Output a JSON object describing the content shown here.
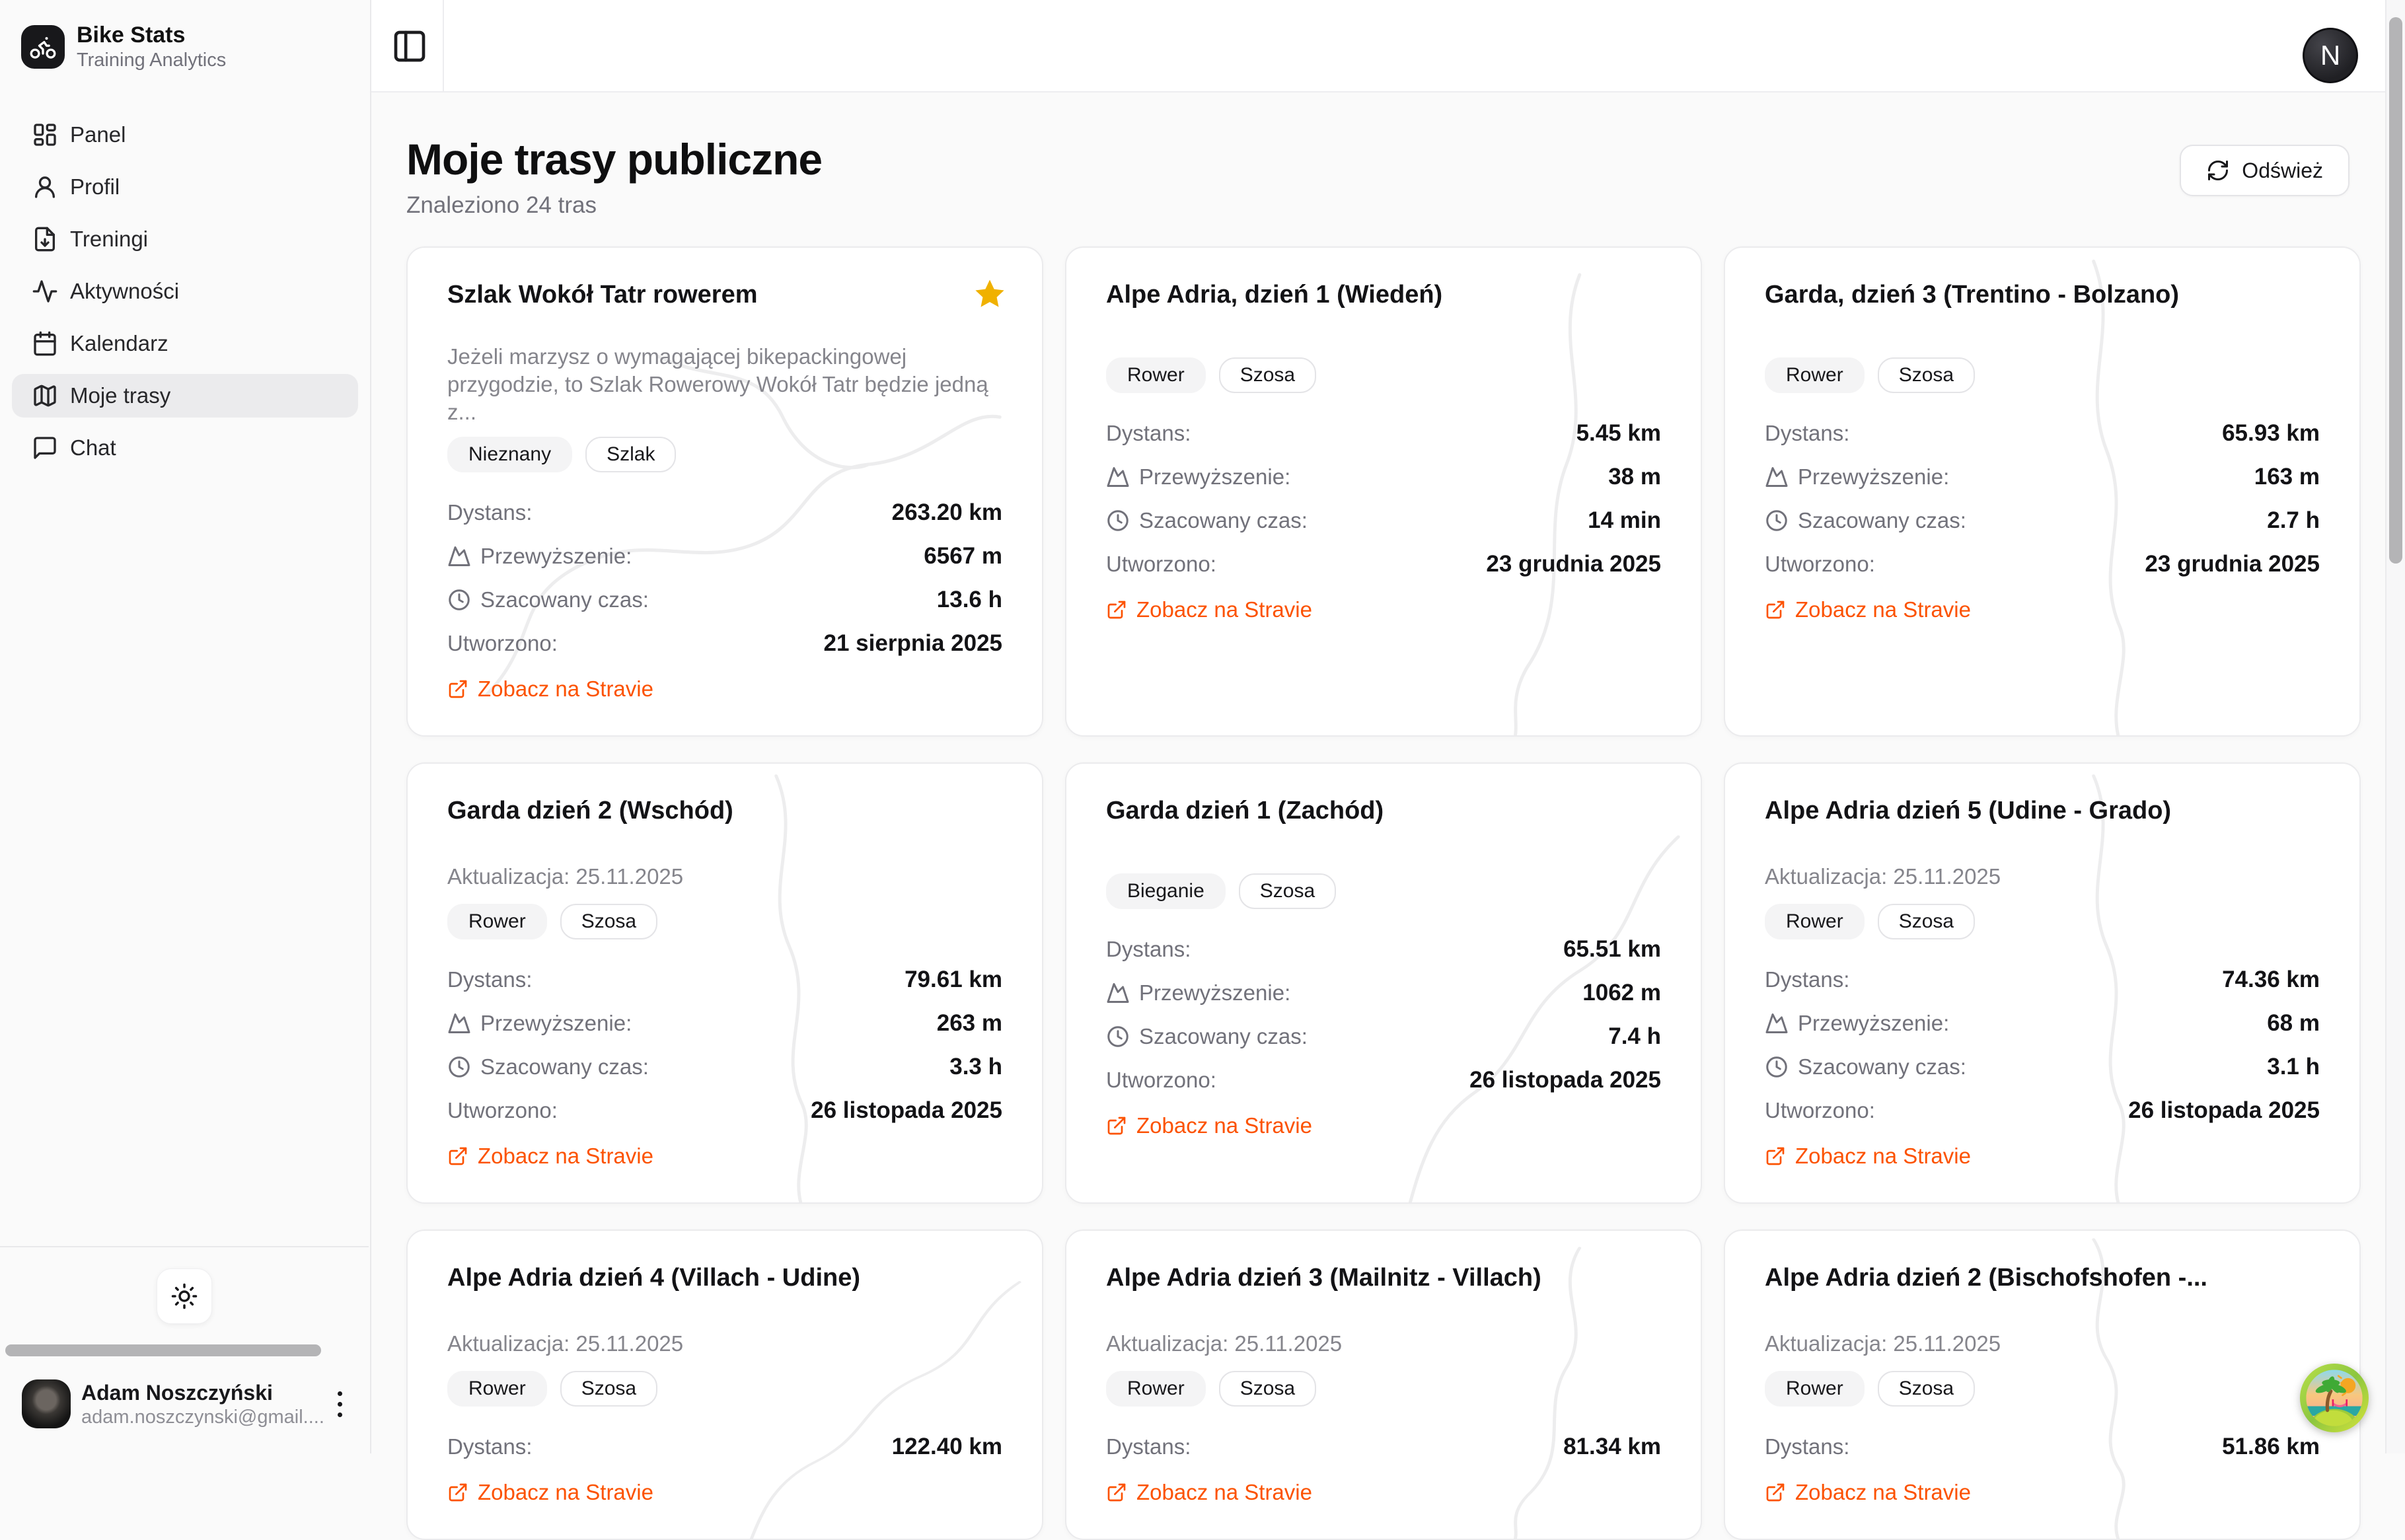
{
  "app": {
    "name": "Bike Stats",
    "subtitle": "Training Analytics"
  },
  "sidebar": {
    "items": [
      {
        "label": "Panel",
        "icon": "dashboard-icon"
      },
      {
        "label": "Profil",
        "icon": "user-icon"
      },
      {
        "label": "Treningi",
        "icon": "file-download-icon"
      },
      {
        "label": "Aktywności",
        "icon": "activity-icon"
      },
      {
        "label": "Kalendarz",
        "icon": "calendar-icon"
      },
      {
        "label": "Moje trasy",
        "icon": "map-icon"
      },
      {
        "label": "Chat",
        "icon": "chat-icon"
      }
    ],
    "active_item": "Moje trasy",
    "user": {
      "name": "Adam Noszczyński",
      "email": "adam.noszczynski@gmail...."
    }
  },
  "header": {
    "avatar_initial": "N"
  },
  "page": {
    "title": "Moje trasy publiczne",
    "subtitle": "Znaleziono 24 tras",
    "refresh_label": "Odśwież"
  },
  "labels": {
    "distance": "Dystans:",
    "elevation": "Przewyższenie:",
    "time": "Szacowany czas:",
    "created": "Utworzono:",
    "strava_link": "Zobacz na Stravie"
  },
  "colors": {
    "accent": "#fc5200",
    "star": "#f0b100"
  },
  "cards": [
    {
      "title": "Szlak Wokół Tatr rowerem",
      "starred": true,
      "description": "Jeżeli marzysz o wymagającej bikepackingowej przygodzie, to Szlak Rowerowy Wokół Tatr będzie jedną z...",
      "updated": null,
      "tags": [
        {
          "label": "Nieznany",
          "style": "filled"
        },
        {
          "label": "Szlak",
          "style": "outline"
        }
      ],
      "distance": "263.20 km",
      "elevation": "6567 m",
      "time": "13.6 h",
      "created": "21 sierpnia 2025"
    },
    {
      "title": "Alpe Adria, dzień 1 (Wiedeń)",
      "starred": false,
      "description": null,
      "updated": null,
      "tags": [
        {
          "label": "Rower",
          "style": "filled"
        },
        {
          "label": "Szosa",
          "style": "outline"
        }
      ],
      "distance": "5.45 km",
      "elevation": "38 m",
      "time": "14 min",
      "created": "23 grudnia 2025"
    },
    {
      "title": "Garda, dzień 3 (Trentino - Bolzano)",
      "starred": false,
      "description": null,
      "updated": null,
      "tags": [
        {
          "label": "Rower",
          "style": "filled"
        },
        {
          "label": "Szosa",
          "style": "outline"
        }
      ],
      "distance": "65.93 km",
      "elevation": "163 m",
      "time": "2.7 h",
      "created": "23 grudnia 2025"
    },
    {
      "title": "Garda dzień 2 (Wschód)",
      "starred": false,
      "description": null,
      "updated": "Aktualizacja: 25.11.2025",
      "tags": [
        {
          "label": "Rower",
          "style": "filled"
        },
        {
          "label": "Szosa",
          "style": "outline"
        }
      ],
      "distance": "79.61 km",
      "elevation": "263 m",
      "time": "3.3 h",
      "created": "26 listopada 2025"
    },
    {
      "title": "Garda dzień 1 (Zachód)",
      "starred": false,
      "description": null,
      "updated": null,
      "tags": [
        {
          "label": "Bieganie",
          "style": "filled"
        },
        {
          "label": "Szosa",
          "style": "outline"
        }
      ],
      "distance": "65.51 km",
      "elevation": "1062 m",
      "time": "7.4 h",
      "created": "26 listopada 2025"
    },
    {
      "title": "Alpe Adria dzień 5 (Udine - Grado)",
      "starred": false,
      "description": null,
      "updated": "Aktualizacja: 25.11.2025",
      "tags": [
        {
          "label": "Rower",
          "style": "filled"
        },
        {
          "label": "Szosa",
          "style": "outline"
        }
      ],
      "distance": "74.36 km",
      "elevation": "68 m",
      "time": "3.1 h",
      "created": "26 listopada 2025"
    },
    {
      "title": "Alpe Adria dzień 4 (Villach - Udine)",
      "starred": false,
      "description": null,
      "updated": "Aktualizacja: 25.11.2025",
      "tags": [
        {
          "label": "Rower",
          "style": "filled"
        },
        {
          "label": "Szosa",
          "style": "outline"
        }
      ],
      "distance": "122.40 km",
      "elevation": null,
      "time": null,
      "created": null
    },
    {
      "title": "Alpe Adria dzień 3 (Mailnitz - Villach)",
      "starred": false,
      "description": null,
      "updated": "Aktualizacja: 25.11.2025",
      "tags": [
        {
          "label": "Rower",
          "style": "filled"
        },
        {
          "label": "Szosa",
          "style": "outline"
        }
      ],
      "distance": "81.34 km",
      "elevation": null,
      "time": null,
      "created": null
    },
    {
      "title": "Alpe Adria dzień 2 (Bischofshofen -...",
      "starred": false,
      "description": null,
      "updated": "Aktualizacja: 25.11.2025",
      "tags": [
        {
          "label": "Rower",
          "style": "filled"
        },
        {
          "label": "Szosa",
          "style": "outline"
        }
      ],
      "distance": "51.86 km",
      "elevation": null,
      "time": null,
      "created": null
    }
  ]
}
